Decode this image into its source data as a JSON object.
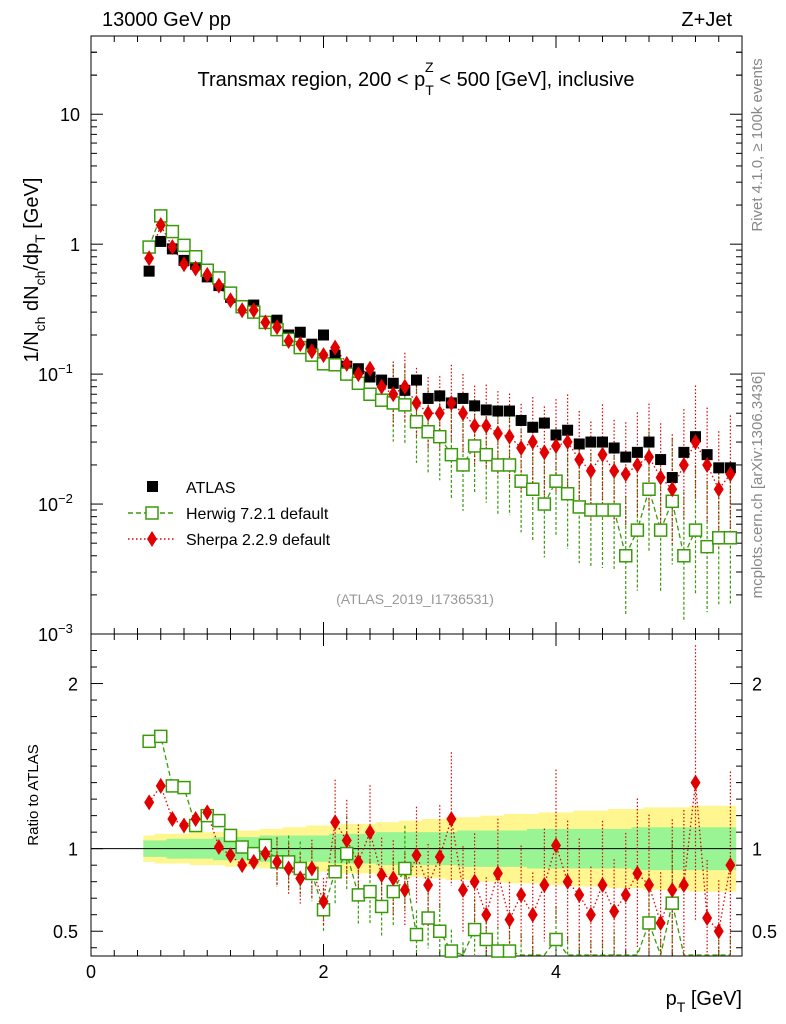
{
  "header": {
    "left": "13000 GeV pp",
    "right": "Z+Jet",
    "title_prefix": "Transmax region, 200 < p",
    "title_sup": "Z",
    "title_sub": "T",
    "title_suffix": " < 500 [GeV], inclusive",
    "analysis_id": "(ATLAS_2019_I1736531)",
    "side_rivet": "Rivet 4.1.0, ≥ 100k events",
    "side_mcplots": "mcplots.cern.ch [arXiv:1306.3436]"
  },
  "axes": {
    "ylabel_main_p1": "1/N",
    "ylabel_main_s1": "ch",
    "ylabel_main_p2": " dN",
    "ylabel_main_s2": "ch",
    "ylabel_main_p3": "/dp",
    "ylabel_main_s3": "T",
    "ylabel_main_p4": " [GeV]",
    "ylabel_ratio": "Ratio to ATLAS",
    "xlabel_main": "p",
    "xlabel_sub": "T",
    "xlabel_unit": " [GeV]",
    "yticks_main": [
      {
        "base": "10",
        "exp": "",
        "value": 10
      },
      {
        "base": "1",
        "exp": "",
        "value": 1
      },
      {
        "base": "10",
        "exp": "−1",
        "value": 0.1
      },
      {
        "base": "10",
        "exp": "−2",
        "value": 0.01
      },
      {
        "base": "10",
        "exp": "−3",
        "value": 0.001
      }
    ],
    "yticks_ratio": [
      "2",
      "1",
      "0.5"
    ],
    "xticks": [
      "0",
      "2",
      "4"
    ]
  },
  "legend": {
    "atlas": "ATLAS",
    "herwig": "Herwig 7.2.1 default",
    "sherpa": "Sherpa 2.2.9 default"
  },
  "colors": {
    "atlas": "#000000",
    "herwig": "#3a9a0a",
    "sherpa": "#e00000",
    "band_inner": "#99f593",
    "band_outer": "#fff68f"
  },
  "chart_data": {
    "type": "scatter",
    "title": "Transmax region, 200 < pT(Z) < 500 [GeV], inclusive",
    "xlabel": "pT [GeV]",
    "ylabel": "1/Nch dNch/dpT [GeV]",
    "xlim": [
      0,
      5.6
    ],
    "ylim": [
      0.001,
      40
    ],
    "ratio_ylim": [
      0.35,
      2.3
    ],
    "x": [
      0.5,
      0.6,
      0.7,
      0.8,
      0.9,
      1.0,
      1.1,
      1.2,
      1.3,
      1.4,
      1.5,
      1.6,
      1.7,
      1.8,
      1.9,
      2.0,
      2.1,
      2.2,
      2.3,
      2.4,
      2.5,
      2.6,
      2.7,
      2.8,
      2.9,
      3.0,
      3.1,
      3.2,
      3.3,
      3.4,
      3.5,
      3.6,
      3.7,
      3.8,
      3.9,
      4.0,
      4.1,
      4.2,
      4.3,
      4.4,
      4.5,
      4.6,
      4.7,
      4.8,
      4.9,
      5.0,
      5.1,
      5.2,
      5.3,
      5.4,
      5.5
    ],
    "series": [
      {
        "name": "ATLAS",
        "values": [
          0.62,
          1.05,
          0.92,
          0.75,
          0.7,
          0.56,
          0.48,
          0.39,
          0.33,
          0.34,
          0.25,
          0.26,
          0.2,
          0.21,
          0.17,
          0.2,
          0.14,
          0.115,
          0.11,
          0.095,
          0.09,
          0.085,
          0.075,
          0.09,
          0.065,
          0.068,
          0.06,
          0.065,
          0.057,
          0.053,
          0.052,
          0.052,
          0.044,
          0.039,
          0.042,
          0.034,
          0.037,
          0.029,
          0.03,
          0.03,
          0.027,
          0.023,
          0.025,
          0.03,
          0.022,
          0.016,
          0.025,
          0.033,
          0.024,
          0.019,
          0.019
        ],
        "ratio": [
          1,
          1,
          1,
          1,
          1,
          1,
          1,
          1,
          1,
          1,
          1,
          1,
          1,
          1,
          1,
          1,
          1,
          1,
          1,
          1,
          1,
          1,
          1,
          1,
          1,
          1,
          1,
          1,
          1,
          1,
          1,
          1,
          1,
          1,
          1,
          1,
          1,
          1,
          1,
          1,
          1,
          1,
          1,
          1,
          1,
          1,
          1,
          1,
          1,
          1,
          1
        ]
      },
      {
        "name": "Herwig 7.2.1 default",
        "values": [
          0.95,
          1.65,
          1.25,
          0.98,
          0.8,
          0.63,
          0.55,
          0.42,
          0.33,
          0.3,
          0.25,
          0.22,
          0.185,
          0.16,
          0.14,
          0.12,
          0.118,
          0.1,
          0.085,
          0.07,
          0.063,
          0.06,
          0.058,
          0.043,
          0.036,
          0.033,
          0.024,
          0.02,
          0.028,
          0.024,
          0.02,
          0.02,
          0.015,
          0.013,
          0.01,
          0.015,
          0.012,
          0.0095,
          0.009,
          0.009,
          0.009,
          0.004,
          0.0063,
          0.013,
          0.0063,
          0.0105,
          0.004,
          0.0063,
          0.0047,
          0.0055,
          0.0055
        ],
        "ratio": [
          1.65,
          1.68,
          1.38,
          1.37,
          1.14,
          1.2,
          1.17,
          1.08,
          1.01,
          0.97,
          1.02,
          0.92,
          0.92,
          0.88,
          0.85,
          0.63,
          0.86,
          0.97,
          0.72,
          0.74,
          0.65,
          0.74,
          0.88,
          0.48,
          0.58,
          0.5,
          0.38,
          0.32,
          0.51,
          0.45,
          0.38,
          0.38,
          0.34,
          0.33,
          0.24,
          0.45,
          0.32,
          0.33,
          0.3,
          0.3,
          0.33,
          0.18,
          0.25,
          0.55,
          0.29,
          0.67,
          0.17,
          0.2,
          0.2,
          0.29,
          0.29
        ]
      },
      {
        "name": "Sherpa 2.2.9 default",
        "values": [
          0.78,
          1.4,
          0.95,
          0.7,
          0.65,
          0.58,
          0.48,
          0.37,
          0.31,
          0.31,
          0.25,
          0.23,
          0.18,
          0.17,
          0.15,
          0.14,
          0.16,
          0.12,
          0.1,
          0.11,
          0.08,
          0.07,
          0.08,
          0.06,
          0.05,
          0.05,
          0.06,
          0.05,
          0.04,
          0.04,
          0.035,
          0.033,
          0.027,
          0.03,
          0.025,
          0.028,
          0.03,
          0.022,
          0.018,
          0.024,
          0.018,
          0.017,
          0.02,
          0.023,
          0.016,
          0.013,
          0.02,
          0.03,
          0.02,
          0.013,
          0.017
        ],
        "ratio": [
          1.28,
          1.38,
          1.18,
          1.14,
          1.18,
          1.22,
          1.01,
          0.96,
          0.9,
          0.92,
          0.97,
          0.92,
          0.88,
          0.82,
          0.88,
          0.68,
          1.16,
          1.05,
          0.92,
          1.1,
          0.84,
          0.82,
          0.75,
          0.96,
          0.78,
          0.95,
          1.18,
          0.75,
          0.8,
          0.6,
          0.85,
          0.57,
          0.72,
          0.6,
          0.78,
          1.02,
          0.8,
          0.72,
          0.6,
          0.78,
          0.62,
          0.72,
          0.85,
          0.78,
          0.55,
          0.75,
          0.78,
          1.4,
          0.58,
          0.5,
          0.9
        ]
      }
    ],
    "band_inner_half": [
      0.05,
      0.05,
      0.06,
      0.06,
      0.06,
      0.06,
      0.07,
      0.07,
      0.07,
      0.07,
      0.08,
      0.08,
      0.08,
      0.08,
      0.08,
      0.08,
      0.09,
      0.09,
      0.09,
      0.09,
      0.1,
      0.1,
      0.1,
      0.1,
      0.1,
      0.1,
      0.1,
      0.11,
      0.11,
      0.11,
      0.11,
      0.11,
      0.11,
      0.12,
      0.12,
      0.12,
      0.12,
      0.12,
      0.12,
      0.12,
      0.12,
      0.12,
      0.13,
      0.13,
      0.13,
      0.13,
      0.13,
      0.13,
      0.13,
      0.13,
      0.13
    ],
    "band_outer_half": [
      0.08,
      0.09,
      0.09,
      0.09,
      0.1,
      0.1,
      0.1,
      0.11,
      0.11,
      0.11,
      0.12,
      0.12,
      0.13,
      0.13,
      0.14,
      0.14,
      0.14,
      0.15,
      0.15,
      0.15,
      0.16,
      0.16,
      0.17,
      0.17,
      0.18,
      0.18,
      0.19,
      0.19,
      0.19,
      0.2,
      0.2,
      0.21,
      0.21,
      0.21,
      0.22,
      0.22,
      0.22,
      0.23,
      0.23,
      0.23,
      0.24,
      0.24,
      0.24,
      0.25,
      0.25,
      0.25,
      0.25,
      0.26,
      0.26,
      0.26,
      0.26
    ]
  }
}
